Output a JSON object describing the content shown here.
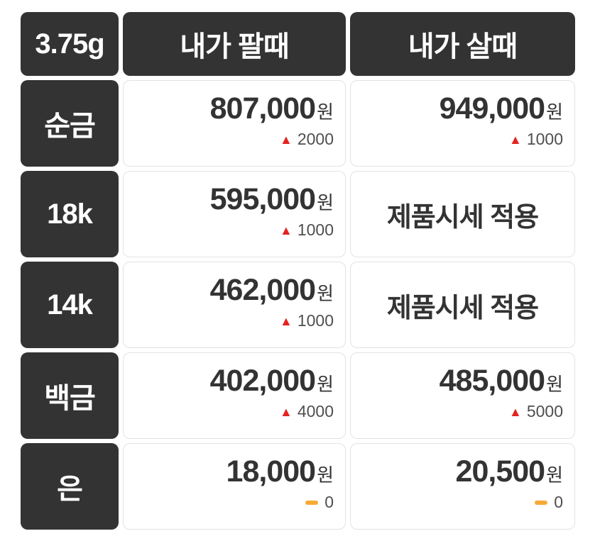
{
  "colors": {
    "background": "#ffffff",
    "dark-cell": "#333333",
    "header-text": "#ffffff",
    "cell-border": "#e2e2e2",
    "price-text": "#333333",
    "change-text": "#4f4f4f",
    "up-red": "#e42320",
    "flat-orange": "#f7a937"
  },
  "icons": {
    "up_arrow": "▲"
  },
  "header": {
    "unit": "3.75g",
    "sell_col": "내가 팔때",
    "buy_col": "내가 살때"
  },
  "rows": [
    {
      "label": "순금",
      "sell": {
        "price": "807,000",
        "unit": "원",
        "change": "2000",
        "direction": "up"
      },
      "buy": {
        "price": "949,000",
        "unit": "원",
        "change": "1000",
        "direction": "up"
      }
    },
    {
      "label": "18k",
      "sell": {
        "price": "595,000",
        "unit": "원",
        "change": "1000",
        "direction": "up"
      },
      "buy": {
        "note": "제품시세 적용"
      }
    },
    {
      "label": "14k",
      "sell": {
        "price": "462,000",
        "unit": "원",
        "change": "1000",
        "direction": "up"
      },
      "buy": {
        "note": "제품시세 적용"
      }
    },
    {
      "label": "백금",
      "sell": {
        "price": "402,000",
        "unit": "원",
        "change": "4000",
        "direction": "up"
      },
      "buy": {
        "price": "485,000",
        "unit": "원",
        "change": "5000",
        "direction": "up"
      }
    },
    {
      "label": "은",
      "sell": {
        "price": "18,000",
        "unit": "원",
        "change": "0",
        "direction": "flat"
      },
      "buy": {
        "price": "20,500",
        "unit": "원",
        "change": "0",
        "direction": "flat"
      }
    }
  ]
}
